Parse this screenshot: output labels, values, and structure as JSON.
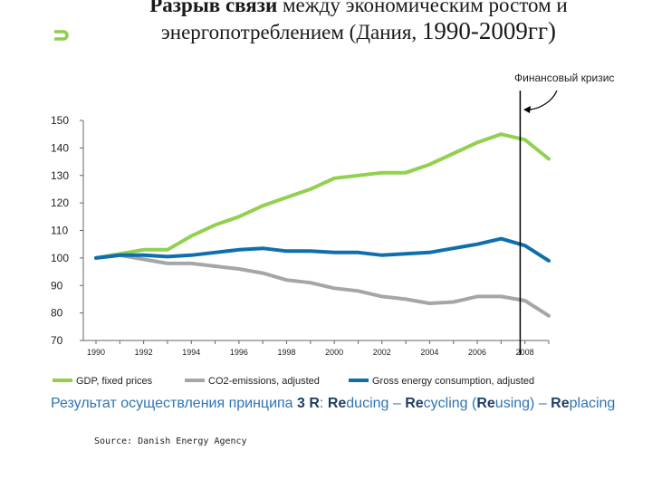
{
  "title": {
    "bold_part": "Разрыв связи",
    "part1_rest": " между экономическим ростом и",
    "line2_start": "энергопотреблением (Дания, ",
    "years": "1990-2009гг)"
  },
  "annotation": "Финансовый кризис",
  "chart_data": {
    "type": "line",
    "x": [
      1990,
      1991,
      1992,
      1993,
      1994,
      1995,
      1996,
      1997,
      1998,
      1999,
      2000,
      2001,
      2002,
      2003,
      2004,
      2005,
      2006,
      2007,
      2008,
      2009
    ],
    "x_tick_labels": [
      "1990",
      "1992",
      "1994",
      "1996",
      "1998",
      "2000",
      "2002",
      "2004",
      "2006",
      "2008"
    ],
    "y_ticks": [
      70,
      80,
      90,
      100,
      110,
      120,
      130,
      140,
      150
    ],
    "ylim": [
      70,
      150
    ],
    "xlim": [
      1990,
      2009
    ],
    "grid": false,
    "legend_position": "bottom",
    "crisis_marker_year": 2007.8,
    "series": [
      {
        "name": "GDP, fixed prices",
        "color": "#92d050",
        "values": [
          100,
          101.5,
          103,
          103,
          108,
          112,
          115,
          119,
          122,
          125,
          129,
          130,
          131,
          131,
          134,
          138,
          142,
          145,
          143,
          136
        ]
      },
      {
        "name": "CO2-emissions, adjusted",
        "color": "#a6a6a6",
        "values": [
          100,
          101,
          99.5,
          98,
          98,
          97,
          96,
          94.5,
          92,
          91,
          89,
          88,
          86,
          85,
          83.5,
          84,
          86,
          86,
          84.5,
          79
        ]
      },
      {
        "name": "Gross energy consumption, adjusted",
        "color": "#0f6fac",
        "values": [
          100,
          101,
          101,
          100.5,
          101,
          102,
          103,
          103.5,
          102.5,
          102.5,
          102,
          102,
          101,
          101.5,
          102,
          103.5,
          105,
          107,
          104.5,
          99
        ]
      }
    ]
  },
  "bottom_text": {
    "part1": "Результат осуществления принципа ",
    "bold1": "3 R",
    "part2": ": ",
    "bold2": "Re",
    "part3": "ducing – ",
    "bold3": "Re",
    "part4": "cycling (",
    "bold4": "Re",
    "part5": "using) – ",
    "bold5": "Re",
    "part6": "placing"
  },
  "source": "Source: Danish Energy Agency"
}
